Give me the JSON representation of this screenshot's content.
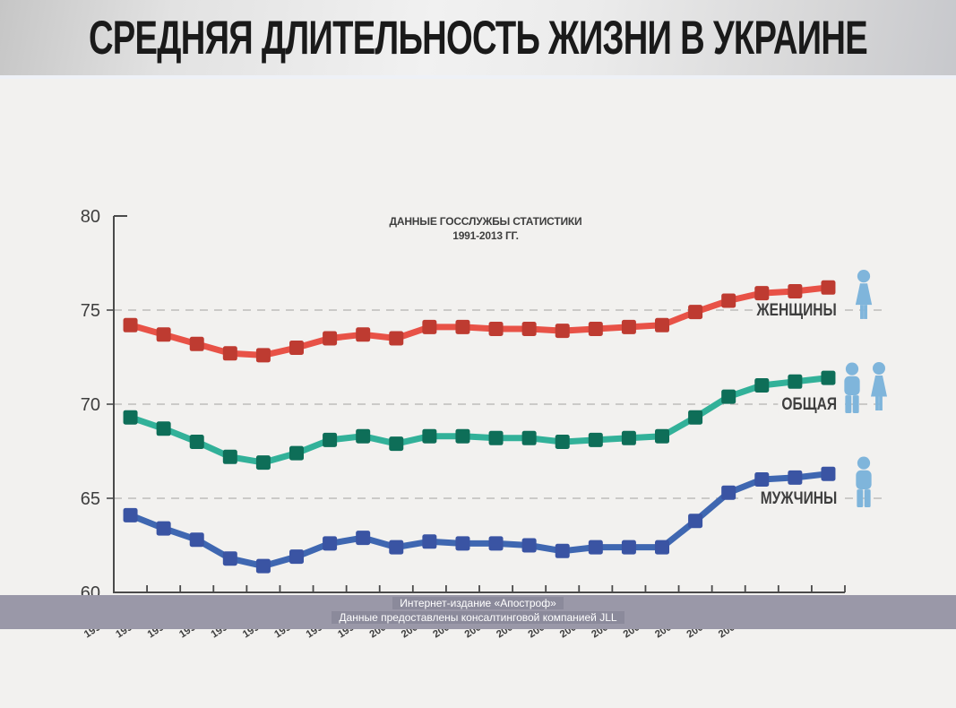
{
  "header": {
    "title": "СРЕДНЯЯ ДЛИТЕЛЬНОСТЬ ЖИЗНИ В УКРАИНЕ"
  },
  "source_note": {
    "line1": "ДАННЫЕ ГОССЛУЖБЫ СТАТИСТИКИ",
    "line2": "1991-2013 ГГ."
  },
  "legend": {
    "items": [
      {
        "label": "ЖЕНЩИНЫ",
        "icon": "female-icon"
      },
      {
        "label": "ОБЩАЯ",
        "icon": "male-and-female-icon"
      },
      {
        "label": "МУЖЧИНЫ",
        "icon": "male-icon"
      }
    ]
  },
  "footer": {
    "line1": "Интернет-издание «Апостроф»",
    "line2": "Данные предоставлены консалтинговой компанией JLL"
  },
  "chart_data": {
    "type": "line",
    "title": "СРЕДНЯЯ ДЛИТЕЛЬНОСТЬ ЖИЗНИ В УКРАИНЕ",
    "subtitle": "ДАННЫЕ ГОССЛУЖБЫ СТАТИСТИКИ 1991-2013 ГГ.",
    "categories": [
      "1991-1992",
      "1992-1993",
      "1993-1994",
      "1994-1995",
      "1995-1996",
      "1996-1997",
      "1997-1998",
      "1998-1999",
      "1999-2000",
      "2000-2001",
      "2001-2002",
      "2002-2003",
      "2003-2004",
      "2004-2005",
      "2005-2006",
      "2006-2007",
      "2007-2008",
      "2008-2009",
      "2009-2010",
      "2011",
      "2012",
      "2013"
    ],
    "x_labels_as_printed": [
      "1991-1992",
      "1992-1993",
      "1993-1994",
      "1994-1995",
      "1995-1996",
      "1996-1997",
      "1997-1998",
      "1998-1999",
      "1999-2000",
      "2000-2001",
      "2001-2002",
      "2001-2002",
      "2002-2003",
      "2003-2004",
      "2004-2005",
      "2004-2005",
      "2005-2006",
      "2006-2007",
      "2007-2008",
      "2008-2009",
      "2009-2010",
      "2011",
      "2012",
      "2013"
    ],
    "series": [
      {
        "name": "ЖЕНЩИНЫ",
        "line_color": "#E85247",
        "marker_color": "#BE3B31",
        "values": [
          74.2,
          73.7,
          73.2,
          72.7,
          72.6,
          73.0,
          73.5,
          73.7,
          73.5,
          74.1,
          74.1,
          74.0,
          74.0,
          73.9,
          74.0,
          74.1,
          74.2,
          74.9,
          75.5,
          75.9,
          76.0,
          76.2
        ]
      },
      {
        "name": "ОБЩАЯ",
        "line_color": "#32B199",
        "marker_color": "#0E6E58",
        "values": [
          69.3,
          68.7,
          68.0,
          67.2,
          66.9,
          67.4,
          68.1,
          68.3,
          67.9,
          68.3,
          68.3,
          68.2,
          68.2,
          68.0,
          68.1,
          68.2,
          68.3,
          69.3,
          70.4,
          71.0,
          71.2,
          71.4
        ]
      },
      {
        "name": "МУЖЧИНЫ",
        "line_color": "#3F67B1",
        "marker_color": "#3A54A3",
        "values": [
          64.1,
          63.4,
          62.8,
          61.8,
          61.4,
          61.9,
          62.6,
          62.9,
          62.4,
          62.7,
          62.6,
          62.6,
          62.5,
          62.2,
          62.4,
          62.4,
          62.4,
          63.8,
          65.3,
          66.0,
          66.1,
          66.3
        ]
      }
    ],
    "ylim": [
      60,
      80
    ],
    "yticks": [
      80,
      75,
      70,
      65,
      60
    ],
    "gridlines": [
      75,
      70,
      65
    ],
    "grid_style": "dashed",
    "legend_position": "right",
    "marker_shape": "square"
  },
  "colors": {
    "title": "#1A1A1A",
    "text": "#3E3E3E",
    "axis": "#4A4A4A",
    "grid": "#BEBDBB",
    "bg_main": "#F2F1EF",
    "person_icon": "#7FB5DB",
    "women_line": "#E85247",
    "women_marker": "#BE3B31",
    "overall_line": "#32B199",
    "overall_marker": "#0E6E58",
    "men_line": "#3F67B1",
    "men_marker": "#3A54A3",
    "footer_bar": "#9A98A8",
    "footer_chip": "#8B8A9B",
    "footer_text": "#FFFFFF"
  }
}
